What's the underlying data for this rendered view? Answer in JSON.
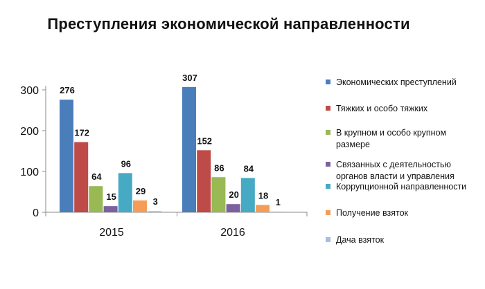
{
  "chart_data": {
    "type": "bar",
    "title": "Преступления экономической направленности",
    "xlabel": "",
    "ylabel": "",
    "categories": [
      "2015",
      "2016"
    ],
    "ylim": [
      0,
      300
    ],
    "yticks": [
      0,
      100,
      200,
      300
    ],
    "grid": false,
    "legend_position": "right",
    "series": [
      {
        "name": "Экономических преступлений",
        "values": [
          276,
          307
        ],
        "color": "#4a7ebb"
      },
      {
        "name": "Тяжких и особо тяжких",
        "values": [
          172,
          152
        ],
        "color": "#be4b48"
      },
      {
        "name": "В крупном и особо крупном размере",
        "values": [
          64,
          86
        ],
        "color": "#98b954"
      },
      {
        "name": "Связанных с деятельностью органов власти и управления",
        "values": [
          15,
          20
        ],
        "color": "#7d60a0"
      },
      {
        "name": "Коррупционной направленности",
        "values": [
          96,
          84
        ],
        "color": "#46aac5"
      },
      {
        "name": "Получение взяток",
        "values": [
          29,
          18
        ],
        "color": "#f59d56"
      },
      {
        "name": "Дача взяток",
        "values": [
          3,
          1
        ],
        "color": "#a5bfe1"
      }
    ],
    "legend_lines": [
      [
        "Экономических преступлений"
      ],
      [
        "Тяжких и особо тяжких"
      ],
      [
        "В крупном и особо крупном",
        "размере"
      ],
      [
        "Связанных с деятельностью",
        "органов власти и управления"
      ],
      [
        "Коррупционной направленности"
      ],
      [
        "Получение взяток"
      ],
      [
        "Дача взяток"
      ]
    ]
  }
}
